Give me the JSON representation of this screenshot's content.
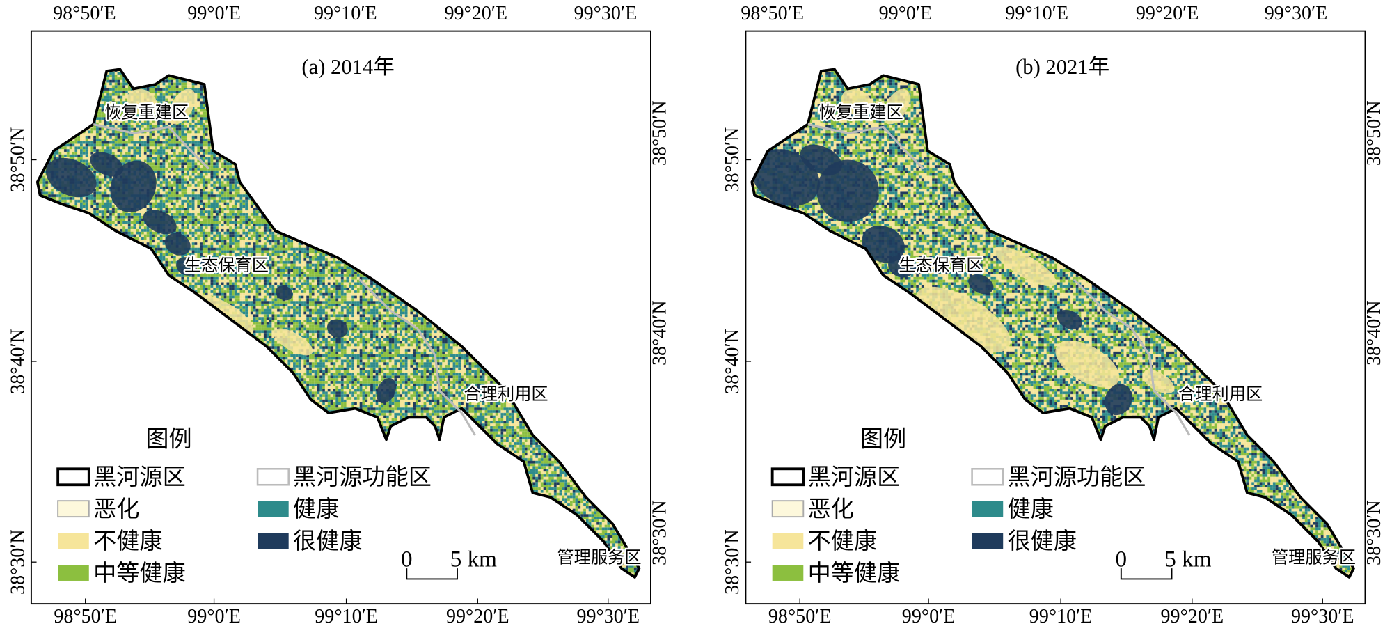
{
  "panels": [
    {
      "title": "(a) 2014年",
      "top_lon_labels": [
        "98°50′E",
        "99°0′E",
        "99°10′E",
        "99°20′E",
        "99°30′E"
      ],
      "bottom_lon_labels": [
        "98°50′E",
        "99°0′E",
        "99°10′E",
        "99°20′E",
        "99°30′E"
      ],
      "left_lat_labels": [
        "38°50′N",
        "38°40′N",
        "38°30′N"
      ],
      "right_lat_labels": [
        "38°50′N",
        "38°40′N",
        "38°30′N"
      ],
      "zone_labels": [
        "恢复重建区",
        "生态保育区",
        "合理利用区",
        "管理服务区"
      ],
      "legend": {
        "title": "图例",
        "items": [
          "黑河源区",
          "恶化",
          "不健康",
          "中等健康",
          "黑河源功能区",
          "健康",
          "很健康"
        ]
      },
      "scale_bar": {
        "zero": "0",
        "label": "5 km"
      }
    },
    {
      "title": "(b) 2021年",
      "top_lon_labels": [
        "98°50′E",
        "99°0′E",
        "99°10′E",
        "99°20′E",
        "99°30′E"
      ],
      "bottom_lon_labels": [
        "98°50′E",
        "99°0′E",
        "99°10′E",
        "99°20′E",
        "99°30′E"
      ],
      "left_lat_labels": [
        "38°50′N",
        "38°40′N",
        "38°30′N"
      ],
      "right_lat_labels": [
        "38°50′N",
        "38°40′N",
        "38°30′N"
      ],
      "zone_labels": [
        "恢复重建区",
        "生态保育区",
        "合理利用区",
        "管理服务区"
      ],
      "legend": {
        "title": "图例",
        "items": [
          "黑河源区",
          "恶化",
          "不健康",
          "中等健康",
          "黑河源功能区",
          "健康",
          "很健康"
        ]
      },
      "scale_bar": {
        "zero": "0",
        "label": "5 km"
      }
    }
  ]
}
